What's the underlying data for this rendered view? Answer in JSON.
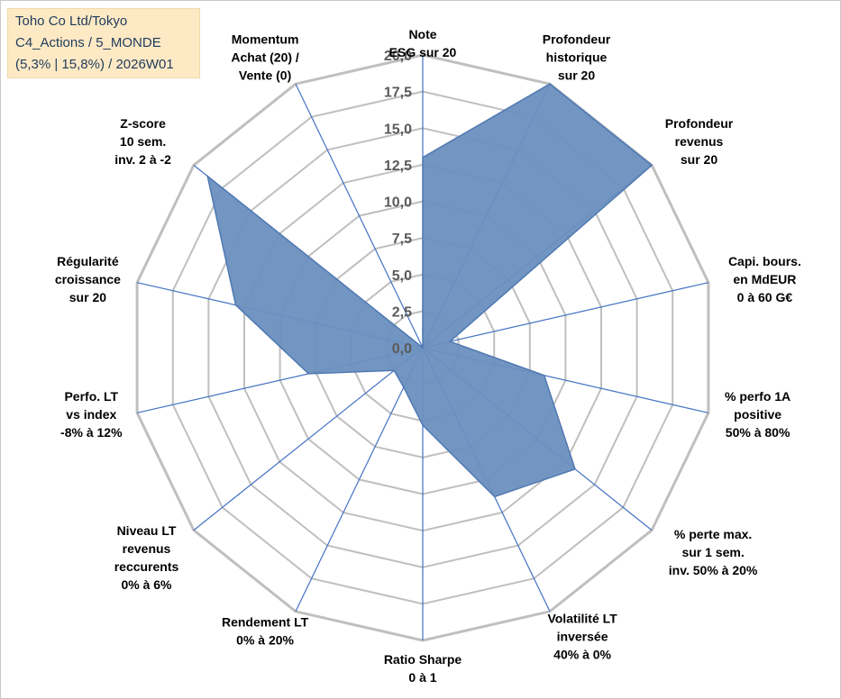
{
  "info_box": {
    "line1": "Toho Co Ltd/Tokyo",
    "line2": "C4_Actions / 5_MONDE",
    "line3": "(5,3% | 15,8%) / 2026W01"
  },
  "colors": {
    "fill": "#6a8fbf",
    "stroke": "#4f79b2",
    "spoke": "#4472c4",
    "grid": "#bfbfbf"
  },
  "chart_data": {
    "type": "radar",
    "title": "",
    "rlim": [
      0,
      20
    ],
    "ticks": [
      "0,0",
      "2,5",
      "5,0",
      "7,5",
      "10,0",
      "12,5",
      "15,0",
      "17,5",
      "20,0"
    ],
    "axes": [
      {
        "label": [
          "Note",
          "ESG sur 20"
        ],
        "value": 13
      },
      {
        "label": [
          "Profondeur",
          "historique",
          "sur 20"
        ],
        "value": 20
      },
      {
        "label": [
          "Profondeur",
          "revenus",
          "sur 20"
        ],
        "value": 20
      },
      {
        "label": [
          "Capi. bours.",
          "en MdEUR",
          "0 à 60 G€"
        ],
        "value": 1.9
      },
      {
        "label": [
          "% perfo 1A",
          "positive",
          "50% à 80%"
        ],
        "value": 8.5
      },
      {
        "label": [
          "% perte max.",
          "sur 1 sem.",
          "inv. 50% à 20%"
        ],
        "value": 13.3
      },
      {
        "label": [
          "Volatilité LT",
          "inversée",
          "40% à 0%"
        ],
        "value": 11.3
      },
      {
        "label": [
          "Ratio Sharpe",
          "0 à 1"
        ],
        "value": 5.3
      },
      {
        "label": [
          "Rendement LT",
          "0% à 20%"
        ],
        "value": 3.0
      },
      {
        "label": [
          "Niveau LT",
          "revenus",
          "reccurents",
          "0% à 6%"
        ],
        "value": 2.5
      },
      {
        "label": [
          "Perfo. LT",
          "vs index",
          "-8% à 12%"
        ],
        "value": 8.0
      },
      {
        "label": [
          "Régularité",
          "croissance",
          "sur 20"
        ],
        "value": 13.1
      },
      {
        "label": [
          "Z-score",
          "10 sem.",
          "inv. 2 à -2"
        ],
        "value": 18.8
      },
      {
        "label": [
          "Momentum",
          "Achat (20) /",
          "Vente (0)"
        ],
        "value": 0
      }
    ]
  }
}
